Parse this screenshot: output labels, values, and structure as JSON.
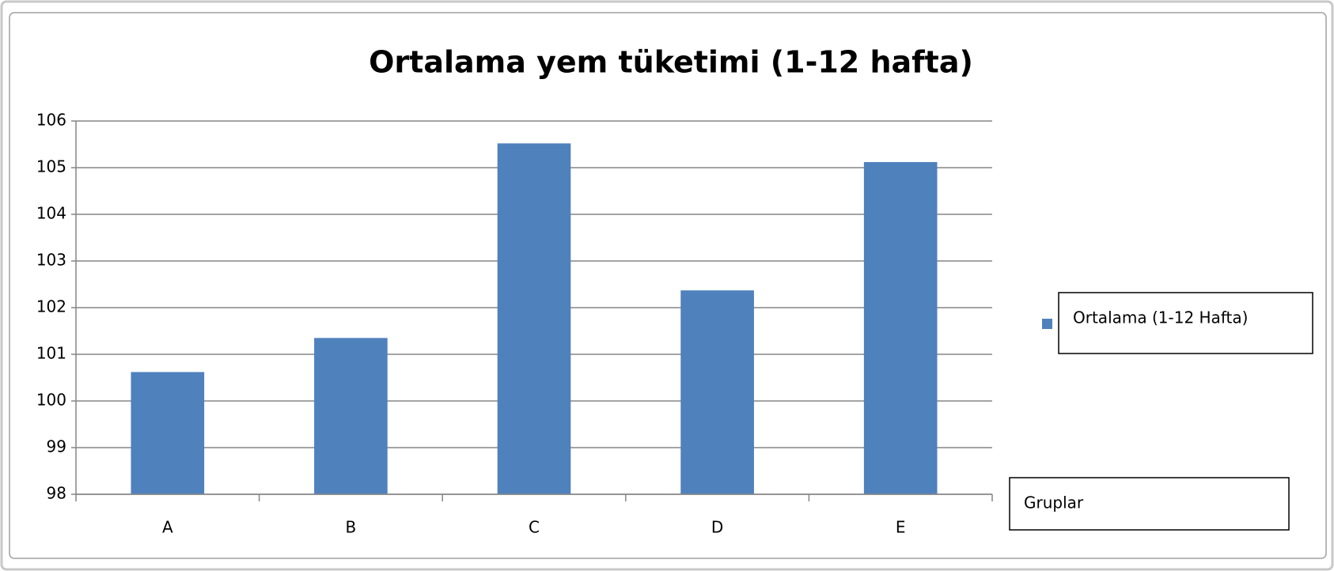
{
  "chart_data": {
    "type": "bar",
    "title": "Ortalama yem tüketimi (1-12 hafta)",
    "categories": [
      "A",
      "B",
      "C",
      "D",
      "E"
    ],
    "series": [
      {
        "name": "Ortalama (1-12 Hafta)",
        "color": "#4f81bd",
        "values": [
          100.62,
          101.35,
          105.52,
          102.37,
          105.12
        ]
      }
    ],
    "x_label": "Gruplar",
    "ylim": [
      98,
      106
    ],
    "yticks": [
      98,
      99,
      100,
      101,
      102,
      103,
      104,
      105,
      106
    ],
    "grid": true,
    "legend": "right"
  }
}
